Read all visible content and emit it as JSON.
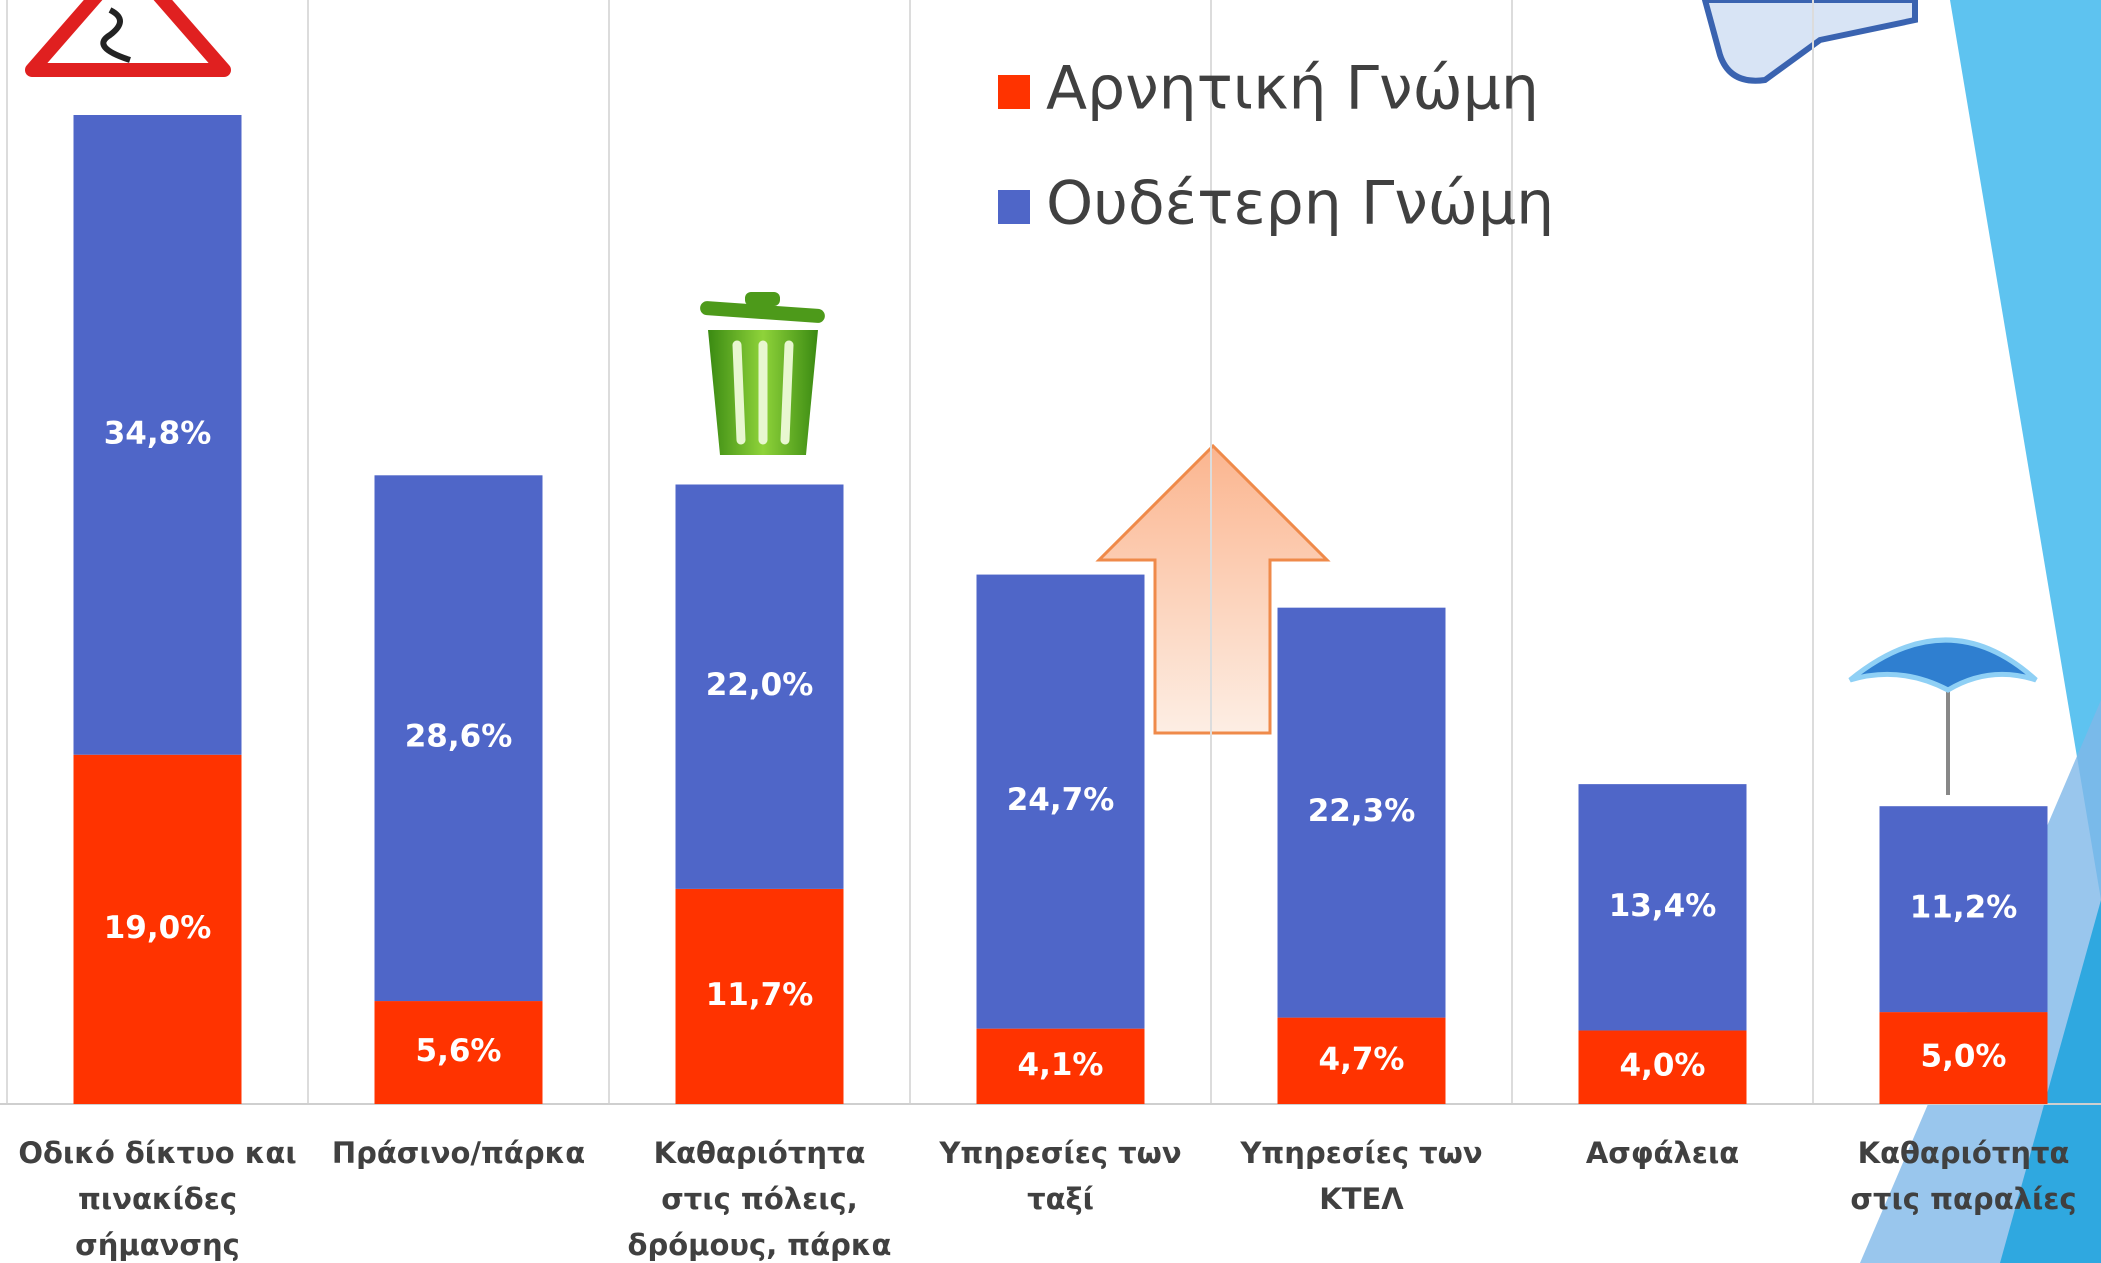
{
  "chart_data": {
    "type": "stacked-bar",
    "categories": [
      "Οδικό δίκτυο και πινακίδες σήμανσης",
      "Πράσινο/πάρκα",
      "Καθαριότητα στις πόλεις, δρόμους, πάρκα",
      "Υπηρεσίες των ταξί",
      "Υπηρεσίες των ΚΤΕΛ",
      "Ασφάλεια",
      "Καθαριότητα στις παραλίες"
    ],
    "series": [
      {
        "name": "Αρνητική Γνώμη",
        "color": "#ff3300",
        "values": [
          19.0,
          5.6,
          11.7,
          4.1,
          4.7,
          4.0,
          5.0
        ],
        "value_labels": [
          "19,0%",
          "5,6%",
          "11,7%",
          "4,1%",
          "4,7%",
          "4,0%",
          "5,0%"
        ]
      },
      {
        "name": "Ουδέτερη Γνώμη",
        "color": "#4f66c8",
        "values": [
          34.8,
          28.6,
          22.0,
          24.7,
          22.3,
          13.4,
          11.2
        ],
        "value_labels": [
          "34,8%",
          "28,6%",
          "22,0%",
          "24,7%",
          "22,3%",
          "13,4%",
          "11,2%"
        ]
      }
    ],
    "legend": "top-right"
  }
}
